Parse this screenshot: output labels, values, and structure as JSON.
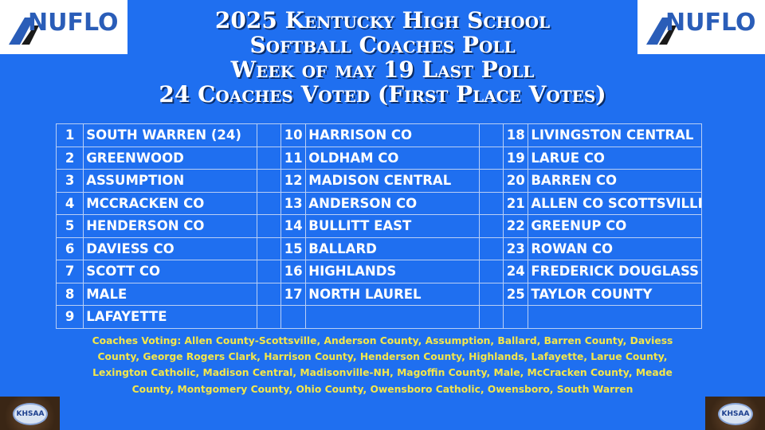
{
  "logo_text": "NUFLO",
  "title_lines": [
    "2025 Kentucky High School",
    "Softball Coaches Poll",
    "Week of may 19  Last Poll",
    "24 Coaches Voted (First Place Votes)"
  ],
  "rankings": [
    {
      "rank": "1",
      "team": "SOUTH WARREN (24)"
    },
    {
      "rank": "2",
      "team": "GREENWOOD"
    },
    {
      "rank": "3",
      "team": "ASSUMPTION"
    },
    {
      "rank": "4",
      "team": "MCCRACKEN CO"
    },
    {
      "rank": "5",
      "team": "HENDERSON CO"
    },
    {
      "rank": "6",
      "team": "DAVIESS CO"
    },
    {
      "rank": "7",
      "team": "SCOTT CO"
    },
    {
      "rank": "8",
      "team": "MALE"
    },
    {
      "rank": "9",
      "team": "LAFAYETTE"
    },
    {
      "rank": "10",
      "team": "HARRISON CO"
    },
    {
      "rank": "11",
      "team": "OLDHAM CO"
    },
    {
      "rank": "12",
      "team": "MADISON CENTRAL"
    },
    {
      "rank": "13",
      "team": "ANDERSON CO"
    },
    {
      "rank": "14",
      "team": "BULLITT EAST"
    },
    {
      "rank": "15",
      "team": "BALLARD"
    },
    {
      "rank": "16",
      "team": "HIGHLANDS"
    },
    {
      "rank": "17",
      "team": "NORTH LAUREL"
    },
    {
      "rank": "18",
      "team": "LIVINGSTON CENTRAL"
    },
    {
      "rank": "19",
      "team": "LARUE CO"
    },
    {
      "rank": "20",
      "team": "BARREN CO"
    },
    {
      "rank": "21",
      "team": "ALLEN CO SCOTTSVILLE"
    },
    {
      "rank": "22",
      "team": "GREENUP CO"
    },
    {
      "rank": "23",
      "team": "ROWAN CO"
    },
    {
      "rank": "24",
      "team": "FREDERICK DOUGLASS"
    },
    {
      "rank": "25",
      "team": "TAYLOR COUNTY"
    }
  ],
  "coaches_voting": "Coaches Voting: Allen County-Scottsville, Anderson County, Assumption, Ballard, Barren County, Daviess County, George Rogers Clark, Harrison County, Henderson County, Highlands, Lafayette, Larue County, Lexington Catholic, Madison Central, Madisonville-NH, Magoffin County, Male, McCracken County, Meade County, Montgomery County, Ohio County, Owensboro Catholic, Owensboro, South Warren",
  "khsaa_text": "KHSAA",
  "colors": {
    "background": "#1f6ff0",
    "voting_text": "#f4e74a",
    "logo_blue": "#2a5db8"
  }
}
